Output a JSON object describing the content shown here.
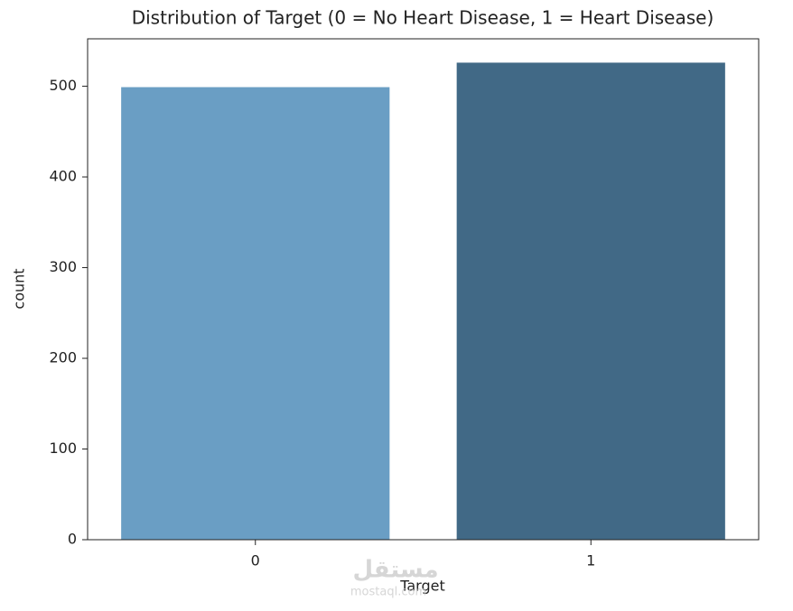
{
  "chart_data": {
    "type": "bar",
    "title": "Distribution of Target (0 = No Heart Disease, 1 = Heart Disease)",
    "x_label": "Target",
    "y_label": "count",
    "categories": [
      "0",
      "1"
    ],
    "values": [
      499,
      526
    ],
    "colors": [
      "#6a9ec4",
      "#416986"
    ],
    "ylim": [
      0,
      552.3
    ],
    "yticks": [
      0,
      100,
      200,
      300,
      400,
      500
    ],
    "grid": false,
    "watermark": [
      "مستقل",
      "mostaql.com"
    ]
  }
}
